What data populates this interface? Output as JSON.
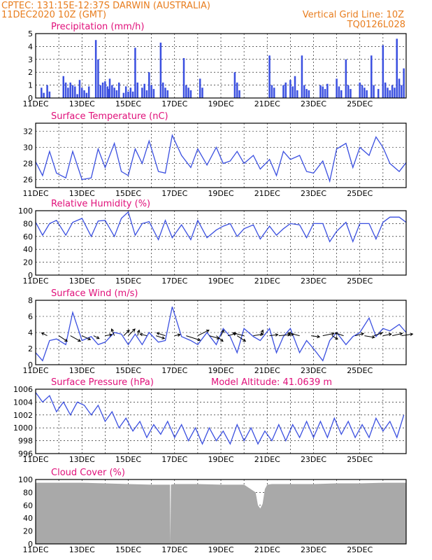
{
  "header": {
    "line1_left": "CPTEC:    131:15E-12:37S   DARWIN (AUSTRALIA)",
    "line2_left": "11DEC2020 10Z (GMT)",
    "line1_right": "Vertical Grid Line: 10Z",
    "line2_right": "TQ0126L028"
  },
  "x_tick_labels": [
    "11DEC",
    "13DEC",
    "15DEC",
    "17DEC",
    "19DEC",
    "21DEC",
    "23DEC",
    "25DEC"
  ],
  "colors": {
    "header": "#e87d1e",
    "title": "#e0107a",
    "series": "#3a4fe0",
    "cloud": "#a9a9a9",
    "arrow": "#000000"
  },
  "chart_data": [
    {
      "type": "bar",
      "title": "Precipitation (mm/h)",
      "ylim": [
        0,
        5
      ],
      "yticks": [
        0,
        1,
        2,
        3,
        4,
        5
      ],
      "x": [
        0.25,
        0.35,
        0.5,
        0.6,
        1.2,
        1.3,
        1.4,
        1.5,
        1.6,
        1.7,
        1.8,
        1.9,
        2.0,
        2.1,
        2.2,
        2.3,
        2.6,
        2.7,
        2.8,
        2.9,
        3.0,
        3.1,
        3.15,
        3.2,
        3.3,
        3.4,
        3.5,
        3.6,
        3.8,
        3.9,
        4.0,
        4.1,
        4.2,
        4.3,
        4.4,
        4.6,
        4.7,
        4.8,
        4.9,
        5.0,
        5.1,
        5.4,
        5.5,
        5.6,
        5.7,
        6.4,
        6.5,
        6.6,
        6.7,
        7.1,
        7.2,
        8.6,
        8.7,
        8.8,
        10.1,
        10.2,
        10.3,
        10.7,
        10.8,
        11.0,
        11.1,
        11.2,
        11.3,
        11.5,
        11.6,
        11.7,
        11.8,
        12.3,
        12.4,
        12.5,
        12.6,
        13.0,
        13.1,
        13.2,
        13.4,
        13.5,
        13.6,
        14.0,
        14.1,
        14.2,
        14.3,
        14.5,
        14.6,
        14.8,
        15.0,
        15.1,
        15.2,
        15.3,
        15.4,
        15.5,
        15.6,
        15.7,
        15.8,
        15.9
      ],
      "values": [
        0.8,
        0.4,
        1.0,
        0.5,
        1.7,
        1.2,
        0.8,
        1.2,
        1.0,
        0.9,
        0.3,
        1.4,
        0.8,
        0.6,
        0.4,
        0.9,
        4.5,
        3.0,
        1.0,
        1.2,
        1.3,
        0.9,
        0.7,
        1.5,
        1.0,
        0.8,
        0.6,
        1.2,
        0.4,
        0.9,
        0.5,
        0.8,
        0.5,
        3.9,
        1.2,
        0.8,
        1.1,
        0.6,
        2.0,
        1.0,
        0.7,
        4.3,
        1.2,
        0.8,
        0.6,
        3.1,
        1.0,
        0.8,
        0.6,
        1.5,
        0.8,
        2.0,
        1.2,
        0.6,
        3.3,
        1.0,
        0.8,
        1.0,
        1.2,
        1.4,
        0.9,
        1.7,
        0.6,
        3.3,
        1.0,
        0.7,
        0.6,
        1.0,
        0.9,
        0.7,
        1.1,
        1.5,
        0.9,
        0.6,
        3.0,
        1.0,
        0.7,
        1.2,
        1.0,
        0.8,
        0.6,
        3.3,
        1.0,
        0.7,
        4.1,
        1.2,
        0.8,
        0.6,
        1.0,
        0.8,
        4.6,
        1.5,
        1.0,
        2.3
      ],
      "xlim": [
        0,
        16
      ]
    },
    {
      "type": "line",
      "title": "Surface Temperature (nC)",
      "ylim": [
        25,
        33
      ],
      "yticks": [
        26,
        28,
        30,
        32
      ],
      "x": [
        0,
        0.3,
        0.6,
        0.9,
        1.3,
        1.6,
        2.0,
        2.4,
        2.7,
        3.0,
        3.4,
        3.7,
        4.0,
        4.3,
        4.6,
        4.9,
        5.3,
        5.6,
        5.9,
        6.3,
        6.7,
        7.0,
        7.4,
        7.8,
        8.1,
        8.4,
        8.7,
        9.0,
        9.4,
        9.7,
        10.1,
        10.4,
        10.7,
        11.0,
        11.4,
        11.7,
        12.0,
        12.4,
        12.7,
        13.0,
        13.4,
        13.7,
        14.0,
        14.4,
        14.7,
        15.0,
        15.3,
        15.7,
        16.0
      ],
      "values": [
        28.2,
        26.5,
        29.5,
        26.8,
        26.2,
        29.5,
        26.0,
        26.2,
        29.8,
        27.5,
        30.5,
        27.0,
        26.5,
        29.8,
        28.0,
        30.8,
        27.0,
        26.8,
        31.5,
        29.0,
        27.5,
        29.8,
        27.8,
        30.0,
        28.0,
        28.3,
        29.5,
        28.0,
        29.0,
        27.3,
        28.5,
        26.5,
        29.5,
        28.5,
        29.0,
        27.0,
        26.8,
        28.3,
        25.8,
        29.8,
        30.5,
        27.5,
        30.0,
        29.0,
        31.3,
        30.0,
        28.0,
        27.0,
        28.1
      ],
      "xlim": [
        0,
        16
      ]
    },
    {
      "type": "line",
      "title": "Relative Humidity (%)",
      "ylim": [
        0,
        100
      ],
      "yticks": [
        0,
        20,
        40,
        60,
        80,
        100
      ],
      "x": [
        0,
        0.3,
        0.6,
        0.9,
        1.3,
        1.6,
        2.0,
        2.4,
        2.7,
        3.0,
        3.4,
        3.7,
        4.0,
        4.3,
        4.6,
        4.9,
        5.3,
        5.6,
        5.9,
        6.3,
        6.7,
        7.0,
        7.4,
        7.8,
        8.1,
        8.4,
        8.7,
        9.0,
        9.4,
        9.7,
        10.1,
        10.4,
        10.7,
        11.0,
        11.4,
        11.7,
        12.0,
        12.4,
        12.7,
        13.0,
        13.4,
        13.7,
        14.0,
        14.4,
        14.7,
        15.0,
        15.3,
        15.7,
        16.0
      ],
      "values": [
        82,
        62,
        80,
        85,
        62,
        82,
        88,
        60,
        84,
        85,
        60,
        88,
        98,
        62,
        80,
        83,
        55,
        85,
        58,
        78,
        55,
        85,
        58,
        70,
        76,
        80,
        60,
        72,
        78,
        56,
        76,
        62,
        72,
        80,
        78,
        58,
        80,
        80,
        52,
        68,
        82,
        52,
        80,
        80,
        56,
        82,
        90,
        90,
        82
      ],
      "xlim": [
        0,
        16
      ]
    },
    {
      "type": "line",
      "title": "Surface Wind (m/s)",
      "ylim": [
        0,
        8
      ],
      "yticks": [
        0,
        2,
        4,
        6,
        8
      ],
      "x": [
        0,
        0.3,
        0.6,
        0.9,
        1.3,
        1.6,
        2.0,
        2.4,
        2.7,
        3.0,
        3.4,
        3.7,
        4.0,
        4.3,
        4.6,
        4.9,
        5.3,
        5.6,
        5.9,
        6.3,
        6.7,
        7.0,
        7.4,
        7.8,
        8.1,
        8.4,
        8.7,
        9.0,
        9.4,
        9.7,
        10.1,
        10.4,
        10.7,
        11.0,
        11.4,
        11.7,
        12.0,
        12.4,
        12.7,
        13.0,
        13.4,
        13.7,
        14.0,
        14.4,
        14.7,
        15.0,
        15.3,
        15.7,
        16.0
      ],
      "values": [
        1.5,
        0.5,
        3.0,
        3.2,
        2.5,
        6.5,
        3.0,
        3.5,
        2.5,
        2.8,
        4.0,
        3.8,
        2.5,
        3.8,
        2.5,
        4.0,
        2.8,
        3.0,
        7.2,
        3.5,
        3.0,
        2.5,
        4.0,
        2.5,
        4.5,
        3.5,
        1.5,
        4.5,
        3.5,
        3.0,
        4.5,
        1.5,
        3.5,
        4.5,
        1.5,
        3.0,
        2.0,
        0.5,
        3.0,
        4.0,
        2.5,
        3.5,
        4.0,
        5.8,
        3.5,
        4.5,
        4.2,
        5.0,
        4.0
      ],
      "arrows": {
        "x": [
          0.5,
          1.0,
          1.5,
          2.0,
          2.5,
          3.0,
          3.4,
          3.8,
          4.0,
          4.4,
          4.8,
          5.2,
          5.6,
          6.0,
          6.5,
          7.0,
          7.5,
          7.8,
          8.0,
          8.3,
          8.7,
          9.0,
          9.4,
          9.7,
          10.1,
          10.5,
          10.9,
          11.4,
          11.9,
          12.4,
          12.8,
          13.3,
          13.8,
          14.2,
          14.6,
          15.0,
          15.4,
          15.8
        ],
        "u": [
          -1.0,
          1.5,
          1.8,
          1.5,
          1.0,
          1.2,
          -0.5,
          1.0,
          1.2,
          0.3,
          -1.2,
          1.5,
          -1.5,
          1.0,
          2.5,
          2.0,
          1.8,
          1.2,
          0.5,
          1.5,
          1.5,
          -2.0,
          1.8,
          0.5,
          1.5,
          2.0,
          1.0,
          -2.0,
          1.5,
          2.0,
          1.0,
          -1.5,
          1.5,
          1.8,
          1.5,
          1.5,
          1.8,
          2.0
        ],
        "v": [
          0.5,
          -1.0,
          -1.0,
          -0.7,
          -0.5,
          0.2,
          1.2,
          1.0,
          1.2,
          1.0,
          0.3,
          -0.5,
          0.5,
          0.2,
          -0.8,
          1.0,
          -0.5,
          -1.0,
          1.0,
          0.4,
          -1.0,
          0.5,
          0.3,
          1.0,
          0.2,
          0.2,
          0.3,
          0.5,
          -0.2,
          0.4,
          -0.6,
          0.5,
          0.4,
          -0.3,
          0.5,
          0.3,
          0.4,
          0.3
        ]
      },
      "xlim": [
        0,
        16
      ]
    },
    {
      "type": "line",
      "title": "Surface Pressure (hPa)",
      "annotation": "Model Altitude: 41.0639 m",
      "ylim": [
        996,
        1006
      ],
      "yticks": [
        996,
        998,
        1000,
        1002,
        1004,
        1006
      ],
      "x": [
        0,
        0.3,
        0.6,
        0.9,
        1.2,
        1.5,
        1.8,
        2.1,
        2.4,
        2.7,
        3.0,
        3.3,
        3.6,
        3.9,
        4.2,
        4.5,
        4.8,
        5.1,
        5.4,
        5.7,
        6.0,
        6.3,
        6.6,
        6.9,
        7.2,
        7.5,
        7.8,
        8.1,
        8.4,
        8.7,
        9.0,
        9.3,
        9.6,
        9.9,
        10.2,
        10.5,
        10.8,
        11.1,
        11.4,
        11.7,
        12.0,
        12.3,
        12.6,
        12.9,
        13.2,
        13.5,
        13.8,
        14.1,
        14.4,
        14.7,
        15.0,
        15.3,
        15.6,
        15.9
      ],
      "values": [
        1005.5,
        1004.0,
        1005.0,
        1002.5,
        1004.0,
        1002.0,
        1004.0,
        1003.5,
        1002.0,
        1003.5,
        1001.0,
        1002.5,
        1000.0,
        1001.5,
        999.5,
        1001.0,
        998.5,
        1000.5,
        999.0,
        1001.0,
        998.5,
        1000.5,
        998.0,
        1000.0,
        997.5,
        1000.0,
        998.0,
        999.5,
        997.5,
        1000.5,
        998.0,
        1000.0,
        997.5,
        999.5,
        998.0,
        1000.5,
        998.0,
        1000.5,
        998.5,
        1001.0,
        998.5,
        1001.0,
        998.5,
        1001.5,
        999.0,
        1001.0,
        998.5,
        1000.5,
        998.5,
        1001.5,
        999.5,
        1001.0,
        998.5,
        1002.0
      ],
      "xlim": [
        0,
        16
      ]
    },
    {
      "type": "area",
      "title": "Cloud Cover (%)",
      "ylim": [
        0,
        100
      ],
      "yticks": [
        0,
        20,
        40,
        60,
        80,
        100
      ],
      "x": [
        0,
        1,
        2,
        3,
        4,
        5,
        5.8,
        5.82,
        5.84,
        6,
        7,
        8,
        9,
        9.5,
        9.6,
        9.7,
        9.8,
        9.9,
        10.0,
        10.2,
        11,
        12,
        13,
        14,
        15,
        16
      ],
      "values": [
        95,
        95,
        95,
        94,
        93,
        92,
        92,
        0,
        92,
        93,
        93,
        92,
        92,
        80,
        60,
        55,
        62,
        85,
        92,
        93,
        93,
        93,
        94,
        94,
        95,
        95
      ],
      "xlim": [
        0,
        16
      ]
    }
  ]
}
